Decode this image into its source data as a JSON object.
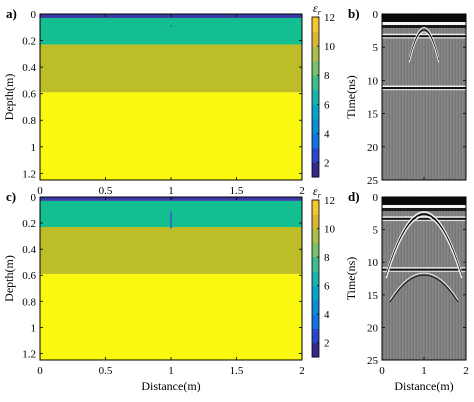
{
  "panel_labels": [
    "a)",
    "b)",
    "c)",
    "d)"
  ],
  "colorbar": {
    "symbol": "ε",
    "subscript": "r",
    "ticks": [
      "2",
      "4",
      "6",
      "8",
      "10",
      "12"
    ],
    "range": [
      1,
      12
    ]
  },
  "colors": {
    "air": "#3a39a8",
    "layer1": "#13bf91",
    "layer2": "#bcbd27",
    "layer3": "#fbf80f",
    "anomaly": "#3a6fc0",
    "radar_bg": "#7f7f7f"
  },
  "chart_data": [
    {
      "type": "heatmap",
      "panel": "a)",
      "xlabel": "",
      "ylabel": "Depth(m)",
      "xlim": [
        0,
        2
      ],
      "ylim": [
        1.25,
        0
      ],
      "x_ticks": [
        "0",
        "0.5",
        "1",
        "1.5",
        "2"
      ],
      "y_ticks": [
        "0",
        "0.2",
        "0.4",
        "0.6",
        "0.8",
        "1",
        "1.2"
      ],
      "layers": [
        {
          "top": 0,
          "bottom": 0.03,
          "eps": 1,
          "color": "#3a39a8"
        },
        {
          "top": 0.03,
          "bottom": 0.23,
          "eps": 7,
          "color": "#13bf91"
        },
        {
          "top": 0.23,
          "bottom": 0.59,
          "eps": 10,
          "color": "#bcbd27"
        },
        {
          "top": 0.59,
          "bottom": 1.25,
          "eps": 12,
          "color": "#fbf80f"
        }
      ],
      "anomaly": {
        "x": 1.0,
        "y_top": 0.085,
        "y_bottom": 0.095
      }
    },
    {
      "type": "heatmap",
      "panel": "b)",
      "xlabel": "",
      "ylabel": "Time(ns)",
      "xlim": [
        0,
        2
      ],
      "ylim": [
        25,
        0
      ],
      "x_ticks": [
        "0",
        "1",
        "2"
      ],
      "y_ticks": [
        "0",
        "5",
        "10",
        "15",
        "20",
        "25"
      ],
      "reflectors_ns": [
        0.3,
        3.2,
        11.0
      ],
      "hyperbola": {
        "apex_x": 1.0,
        "apex_t": 1.8,
        "strength": 0.4,
        "width": 0.35
      }
    },
    {
      "type": "heatmap",
      "panel": "c)",
      "xlabel": "Distance(m)",
      "ylabel": "Depth(m)",
      "xlim": [
        0,
        2
      ],
      "ylim": [
        1.25,
        0
      ],
      "x_ticks": [
        "0",
        "0.5",
        "1",
        "1.5",
        "2"
      ],
      "y_ticks": [
        "0",
        "0.2",
        "0.4",
        "0.6",
        "0.8",
        "1",
        "1.2"
      ],
      "layers": [
        {
          "top": 0,
          "bottom": 0.03,
          "eps": 1,
          "color": "#3a39a8"
        },
        {
          "top": 0.03,
          "bottom": 0.23,
          "eps": 7,
          "color": "#13bf91"
        },
        {
          "top": 0.23,
          "bottom": 0.59,
          "eps": 10,
          "color": "#bcbd27"
        },
        {
          "top": 0.59,
          "bottom": 1.25,
          "eps": 12,
          "color": "#fbf80f"
        }
      ],
      "anomaly": {
        "x": 1.0,
        "y_top": 0.11,
        "y_bottom": 0.24
      }
    },
    {
      "type": "heatmap",
      "panel": "d)",
      "xlabel": "Distance(m)",
      "ylabel": "Time(ns)",
      "xlim": [
        0,
        2
      ],
      "ylim": [
        25,
        0
      ],
      "x_ticks": [
        "0",
        "1",
        "2"
      ],
      "y_ticks": [
        "0",
        "5",
        "10",
        "15",
        "20",
        "25"
      ],
      "reflectors_ns": [
        0.3,
        3.2,
        11.0
      ],
      "hyperbola": {
        "apex_x": 1.0,
        "apex_t": 1.8,
        "strength": 1.0,
        "width": 0.9,
        "secondary_apex_t": 11.2
      }
    }
  ]
}
